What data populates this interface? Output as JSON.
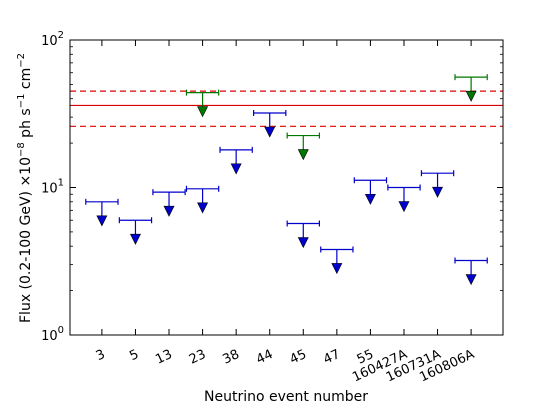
{
  "chart_data": {
    "type": "scatter",
    "xlabel": "Neutrino event number",
    "ylabel_parts": {
      "main": "Flux (0.2-100 GeV) ×10",
      "exp1": "−8",
      "unit_ph_s": " ph s",
      "exp2": "−1",
      "unit_cm": " cm",
      "exp3": "−2"
    },
    "yscale": "log",
    "ylim": [
      1,
      100
    ],
    "y_ticks": [
      {
        "value": 1,
        "base": "10",
        "exp": "0"
      },
      {
        "value": 10,
        "base": "10",
        "exp": "1"
      },
      {
        "value": 100,
        "base": "10",
        "exp": "2"
      }
    ],
    "categories": [
      "3",
      "5",
      "13",
      "23",
      "38",
      "44",
      "45",
      "47",
      "55",
      "160427A",
      "160731A",
      "160806A"
    ],
    "upper_limits": [
      {
        "category": "3",
        "value": 8.0,
        "color": "#0000cc"
      },
      {
        "category": "5",
        "value": 6.0,
        "color": "#0000cc"
      },
      {
        "category": "13",
        "value": 9.3,
        "color": "#0000cc"
      },
      {
        "category": "23",
        "value": 9.8,
        "color": "#0000cc"
      },
      {
        "category": "23",
        "value": 44.0,
        "color": "#007700"
      },
      {
        "category": "38",
        "value": 18.0,
        "color": "#0000cc"
      },
      {
        "category": "44",
        "value": 32.0,
        "color": "#0000cc"
      },
      {
        "category": "45",
        "value": 22.5,
        "color": "#007700"
      },
      {
        "category": "45",
        "value": 5.7,
        "color": "#0000cc"
      },
      {
        "category": "47",
        "value": 3.8,
        "color": "#0000cc"
      },
      {
        "category": "55",
        "value": 11.2,
        "color": "#0000cc"
      },
      {
        "category": "160427A",
        "value": 10.0,
        "color": "#0000cc"
      },
      {
        "category": "160731A",
        "value": 12.5,
        "color": "#0000cc"
      },
      {
        "category": "160806A",
        "value": 3.2,
        "color": "#0000cc"
      },
      {
        "category": "160806A",
        "value": 56.0,
        "color": "#007700"
      }
    ],
    "reference_lines": [
      {
        "value": 36,
        "style": "solid",
        "color": "#dd0000"
      },
      {
        "value": 45,
        "style": "dashed",
        "color": "#dd0000"
      },
      {
        "value": 26,
        "style": "dashed",
        "color": "#dd0000"
      }
    ]
  }
}
